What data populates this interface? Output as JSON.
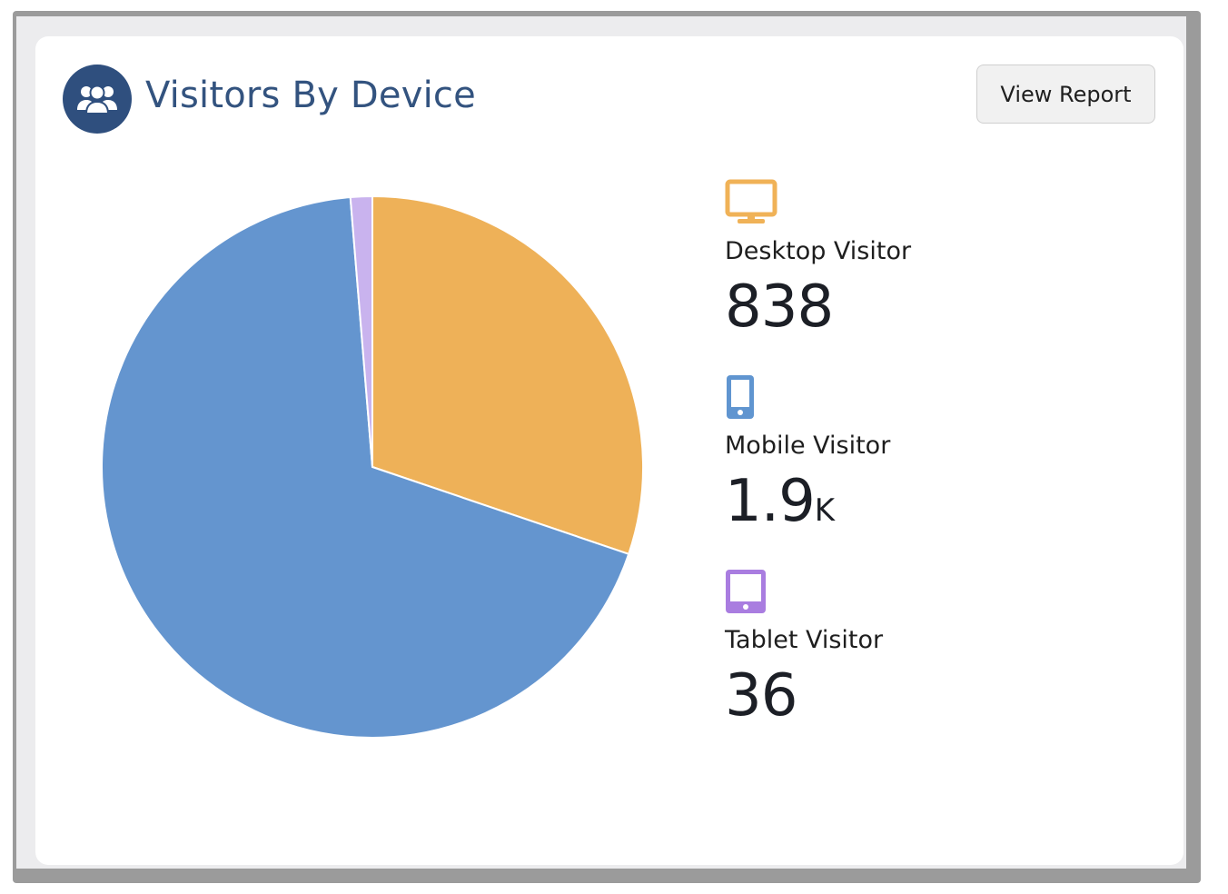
{
  "header": {
    "title": "Visitors By Device",
    "icon": "users-group-icon",
    "button_label": "View Report"
  },
  "legend": [
    {
      "label": "Desktop Visitor",
      "value": "838",
      "unit": "",
      "icon": "desktop-icon",
      "color": "#f0b257"
    },
    {
      "label": "Mobile Visitor",
      "value": "1.9",
      "unit": "K",
      "icon": "mobile-icon",
      "color": "#6095d0"
    },
    {
      "label": "Tablet Visitor",
      "value": "36",
      "unit": "",
      "icon": "tablet-icon",
      "color": "#a97de0"
    }
  ],
  "chart_data": {
    "type": "pie",
    "title": "Visitors By Device",
    "categories": [
      "Desktop Visitor",
      "Mobile Visitor",
      "Tablet Visitor"
    ],
    "values": [
      838,
      1900,
      36
    ],
    "colors": [
      "#eeb158",
      "#6495cf",
      "#c9b3ee"
    ]
  }
}
